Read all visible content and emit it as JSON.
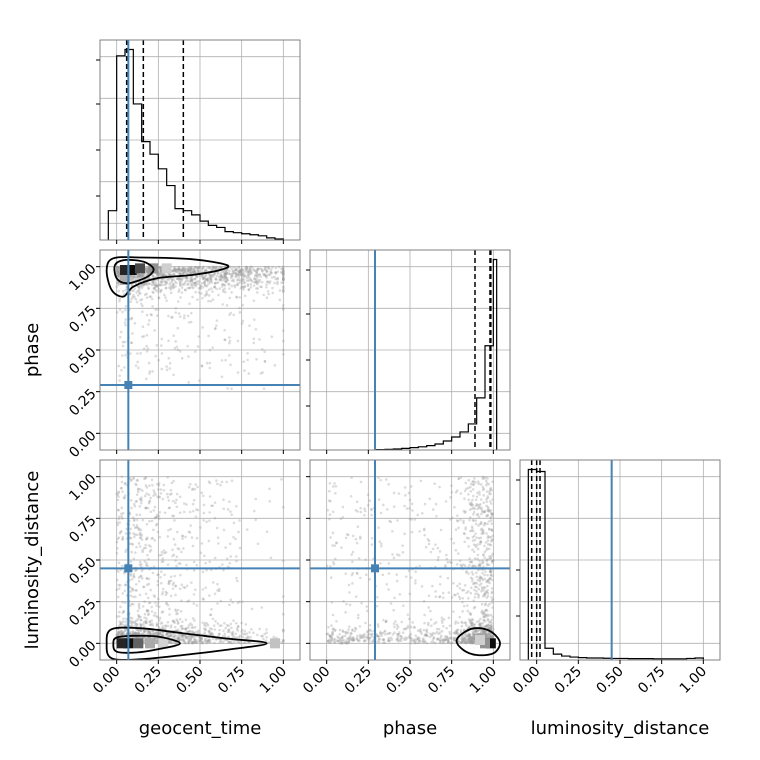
{
  "chart_data": {
    "type": "corner",
    "parameters": [
      "geocent_time",
      "phase",
      "luminosity_distance"
    ],
    "axis_range": [
      -0.1,
      1.1
    ],
    "tick_values": [
      0.0,
      0.25,
      0.5,
      0.75,
      1.0
    ],
    "tick_labels": [
      "0.00",
      "0.25",
      "0.50",
      "0.75",
      "1.00"
    ],
    "grid": true,
    "truths": {
      "geocent_time": 0.07,
      "phase": 0.29,
      "luminosity_distance": 0.45
    },
    "colors": {
      "truth": "#4682b4",
      "hist": "#000000",
      "points": "#9a9a9a",
      "grid": "#b0b0b0"
    },
    "marginals": [
      {
        "parameter": "geocent_time",
        "quantiles": [
          0.06,
          0.16,
          0.4
        ],
        "bin_edges": [
          -0.05,
          0.0,
          0.05,
          0.1,
          0.15,
          0.2,
          0.25,
          0.3,
          0.35,
          0.4,
          0.45,
          0.5,
          0.55,
          0.6,
          0.65,
          0.7,
          0.75,
          0.8,
          0.85,
          0.9,
          0.95,
          1.0
        ],
        "counts": [
          0.14,
          0.88,
          0.91,
          0.65,
          0.47,
          0.41,
          0.34,
          0.26,
          0.15,
          0.14,
          0.12,
          0.09,
          0.07,
          0.06,
          0.04,
          0.035,
          0.03,
          0.025,
          0.02,
          0.01,
          0.005
        ]
      },
      {
        "parameter": "phase",
        "quantiles": [
          0.89,
          0.98,
          0.985
        ],
        "bin_edges": [
          0.3,
          0.35,
          0.4,
          0.45,
          0.5,
          0.55,
          0.6,
          0.65,
          0.7,
          0.75,
          0.8,
          0.85,
          0.9,
          0.95,
          1.0,
          1.02
        ],
        "counts": [
          0.002,
          0.003,
          0.005,
          0.008,
          0.012,
          0.016,
          0.022,
          0.03,
          0.045,
          0.065,
          0.09,
          0.13,
          0.26,
          0.52,
          0.95
        ]
      },
      {
        "parameter": "luminosity_distance",
        "quantiles": [
          -0.03,
          0.0,
          0.02
        ],
        "bin_edges": [
          -0.05,
          0.0,
          0.05,
          0.1,
          0.15,
          0.2,
          0.25,
          0.3,
          0.35,
          0.4,
          0.45,
          0.5,
          0.55,
          0.6,
          0.65,
          0.7,
          0.75,
          0.8,
          0.85,
          0.9,
          0.95,
          1.0
        ],
        "counts": [
          0.97,
          0.96,
          0.06,
          0.03,
          0.02,
          0.015,
          0.012,
          0.01,
          0.01,
          0.009,
          0.008,
          0.008,
          0.007,
          0.007,
          0.007,
          0.006,
          0.006,
          0.006,
          0.006,
          0.008,
          0.01
        ]
      }
    ],
    "joints": [
      {
        "x_param": "geocent_time",
        "y_param": "phase",
        "cores": [
          {
            "x": 0.09,
            "y": 0.98,
            "level": 1.0
          },
          {
            "x": 0.05,
            "y": 0.98,
            "level": 0.9
          },
          {
            "x": 0.14,
            "y": 0.99,
            "level": 0.75
          },
          {
            "x": 0.22,
            "y": 0.99,
            "level": 0.45
          },
          {
            "x": 0.3,
            "y": 0.99,
            "level": 0.2
          },
          {
            "x": 0.05,
            "y": 0.92,
            "level": 0.35
          }
        ],
        "contours": [
          [
            [
              0.0,
              0.93
            ],
            [
              0.06,
              0.9
            ],
            [
              0.14,
              0.92
            ],
            [
              0.2,
              0.95
            ],
            [
              0.22,
              0.99
            ],
            [
              0.16,
              1.03
            ],
            [
              0.05,
              1.04
            ],
            [
              -0.01,
              1.01
            ]
          ],
          [
            [
              -0.03,
              0.86
            ],
            [
              0.04,
              0.82
            ],
            [
              0.1,
              0.88
            ],
            [
              0.24,
              0.93
            ],
            [
              0.45,
              0.95
            ],
            [
              0.62,
              0.98
            ],
            [
              0.66,
              1.01
            ],
            [
              0.45,
              1.045
            ],
            [
              0.15,
              1.055
            ],
            [
              -0.02,
              1.05
            ],
            [
              -0.06,
              0.98
            ]
          ]
        ]
      },
      {
        "x_param": "geocent_time",
        "y_param": "luminosity_distance",
        "cores": [
          {
            "x": 0.07,
            "y": 0.0,
            "level": 1.0
          },
          {
            "x": 0.03,
            "y": 0.0,
            "level": 0.9
          },
          {
            "x": 0.13,
            "y": 0.0,
            "level": 0.65
          },
          {
            "x": 0.2,
            "y": 0.0,
            "level": 0.35
          },
          {
            "x": 0.28,
            "y": 0.0,
            "level": 0.18
          },
          {
            "x": 0.95,
            "y": 0.0,
            "level": 0.25
          }
        ],
        "contours": [
          [
            [
              0.0,
              -0.05
            ],
            [
              0.12,
              -0.055
            ],
            [
              0.25,
              -0.035
            ],
            [
              0.38,
              0.0
            ],
            [
              0.25,
              0.04
            ],
            [
              0.1,
              0.045
            ],
            [
              0.0,
              0.035
            ],
            [
              -0.02,
              0.0
            ]
          ],
          [
            [
              -0.03,
              -0.09
            ],
            [
              0.15,
              -0.095
            ],
            [
              0.4,
              -0.07
            ],
            [
              0.65,
              -0.04
            ],
            [
              0.9,
              0.0
            ],
            [
              0.65,
              0.03
            ],
            [
              0.4,
              0.06
            ],
            [
              0.15,
              0.09
            ],
            [
              -0.03,
              0.085
            ],
            [
              -0.06,
              0.0
            ]
          ]
        ]
      },
      {
        "x_param": "phase",
        "y_param": "luminosity_distance",
        "cores": [
          {
            "x": 0.985,
            "y": 0.0,
            "level": 1.0
          },
          {
            "x": 0.95,
            "y": 0.0,
            "level": 0.45
          },
          {
            "x": 0.92,
            "y": 0.02,
            "level": 0.2
          }
        ],
        "contours": [
          [
            [
              0.78,
              0.02
            ],
            [
              0.82,
              -0.04
            ],
            [
              0.9,
              -0.07
            ],
            [
              1.0,
              -0.06
            ],
            [
              1.04,
              0.0
            ],
            [
              1.0,
              0.06
            ],
            [
              0.93,
              0.09
            ],
            [
              0.85,
              0.08
            ]
          ]
        ]
      }
    ]
  }
}
